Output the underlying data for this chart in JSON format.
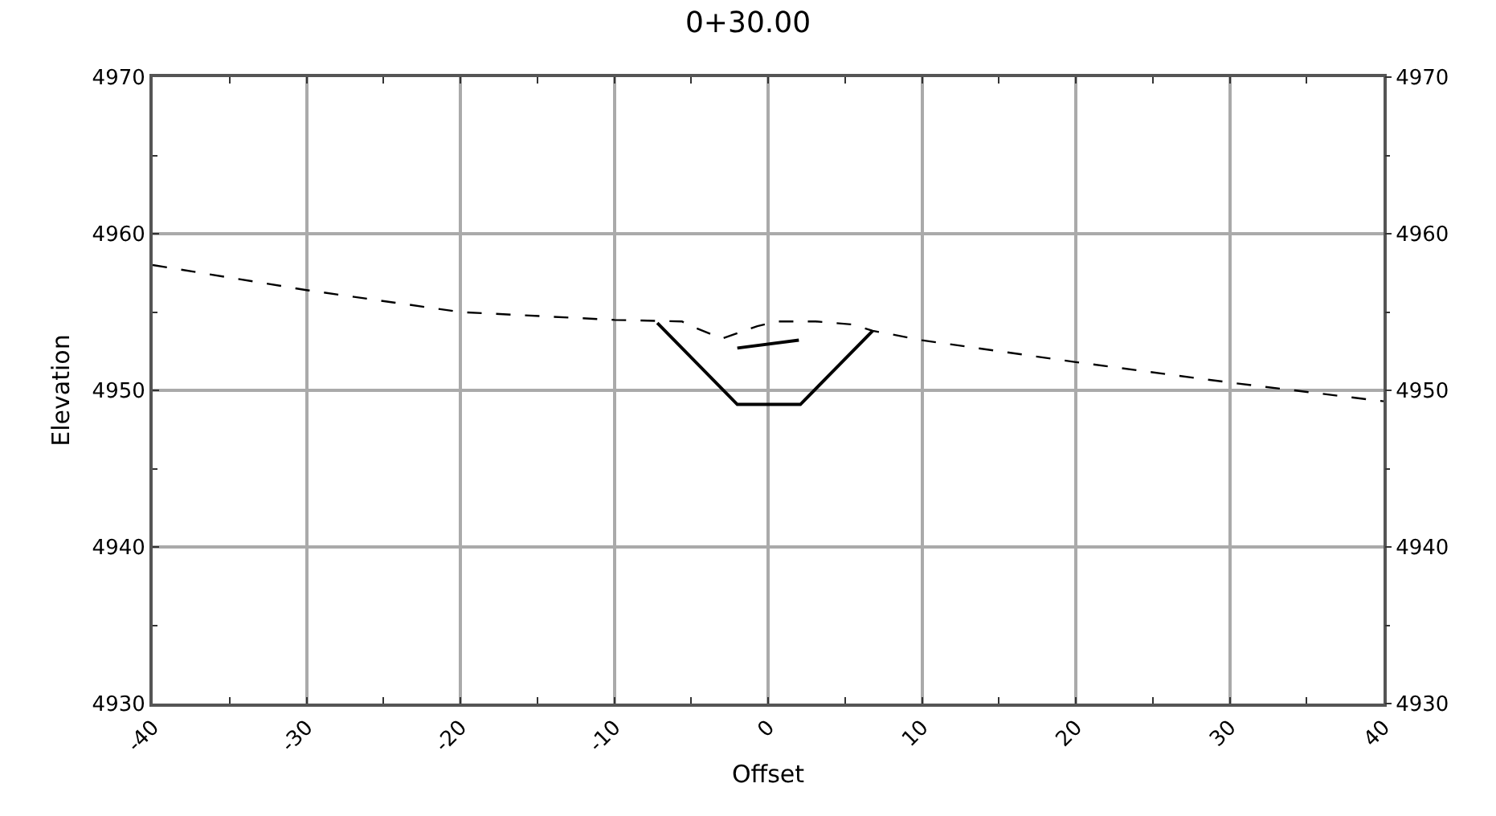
{
  "chart_data": {
    "type": "line",
    "title": "0+30.00",
    "xlabel": "Offset",
    "ylabel": "Elevation",
    "series": [
      {
        "color": "#000000",
        "line_style": "dashed",
        "x": [
          -40,
          -30,
          -20,
          -10,
          -5.6,
          -5.0,
          -3.0,
          -0.7,
          0.6,
          3.1,
          5.5,
          6.8,
          7.9,
          10,
          20,
          30,
          40
        ],
        "values": [
          4958.0,
          4956.4,
          4955.0,
          4954.5,
          4954.4,
          4954.1,
          4953.3,
          4954.1,
          4954.4,
          4954.4,
          4954.2,
          4953.8,
          4953.6,
          4953.2,
          4951.8,
          4950.5,
          4949.3
        ]
      },
      {
        "color": "#000000",
        "line_style": "solid",
        "x": [
          -7.2,
          -2.0,
          2.1,
          6.8
        ],
        "values": [
          4954.3,
          4949.1,
          4949.1,
          4953.8
        ]
      },
      {
        "color": "#000000",
        "line_style": "solid",
        "x": [
          -2.0,
          2.0
        ],
        "values": [
          4952.7,
          4953.2
        ]
      }
    ],
    "xlim": [
      -40,
      40
    ],
    "xticks": [
      -40,
      {
        "value": -35,
        "label": null
      },
      -30,
      {
        "value": -25,
        "label": null
      },
      -20,
      {
        "value": -15,
        "label": null
      },
      -10,
      {
        "value": -5,
        "label": null
      },
      0,
      {
        "value": 5,
        "label": null
      },
      10,
      {
        "value": 15,
        "label": null
      },
      20,
      {
        "value": 25,
        "label": null
      },
      30,
      {
        "value": 35,
        "label": null
      },
      40
    ],
    "ylim": [
      4930,
      4970
    ],
    "yticks": [
      4930,
      {
        "value": 4935,
        "label": null
      },
      4940,
      {
        "value": 4945,
        "label": null
      },
      4950,
      {
        "value": 4955,
        "label": null
      },
      4960,
      {
        "value": 4965,
        "label": null
      },
      4970
    ],
    "y2lim": [
      4930,
      4970
    ],
    "y2ticks": [
      4930,
      {
        "value": 4935,
        "label": null
      },
      4940,
      {
        "value": 4945,
        "label": null
      },
      4950,
      {
        "value": 4955,
        "label": null
      },
      4960,
      {
        "value": 4965,
        "label": null
      },
      4970
    ],
    "grid": true
  }
}
